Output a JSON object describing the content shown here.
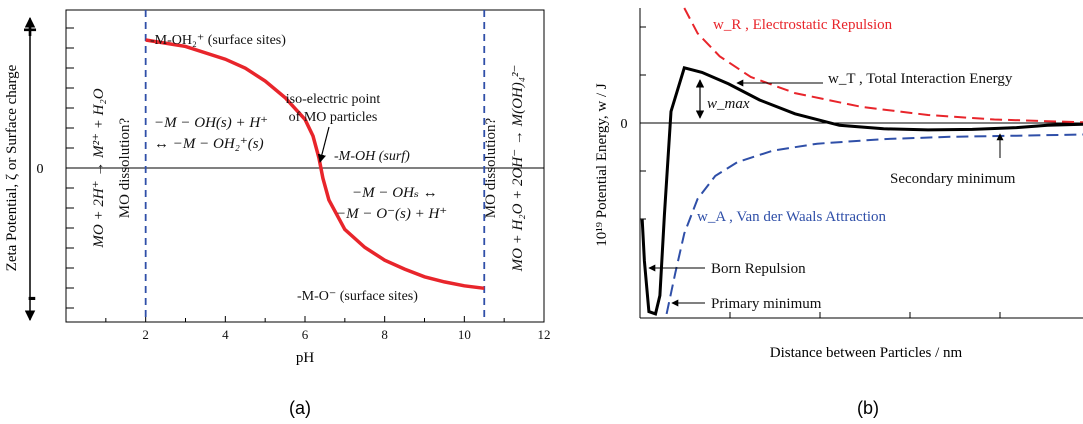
{
  "chart_data": [
    {
      "panel_label": "(a)",
      "type": "line",
      "xlabel": "pH",
      "ylabel": "Zeta Potential, ζ or Surface charge",
      "xlim": [
        0,
        12
      ],
      "x_ticks": [
        "2",
        "4",
        "6",
        "8",
        "10",
        "12"
      ],
      "y_sign_top": "+",
      "y_sign_bottom": "-",
      "y_zero_label": "0",
      "series": [
        {
          "color": "#e8252b",
          "x": [
            2.0,
            3.0,
            4.0,
            4.5,
            5.0,
            5.5,
            6.0,
            6.2,
            6.35,
            6.45,
            6.6,
            7.0,
            7.5,
            8.0,
            8.5,
            9.0,
            9.5,
            10.0,
            10.5
          ],
          "y": [
            1.0,
            0.95,
            0.85,
            0.78,
            0.68,
            0.55,
            0.38,
            0.25,
            0.08,
            -0.08,
            -0.25,
            -0.48,
            -0.62,
            -0.72,
            -0.79,
            -0.85,
            -0.89,
            -0.92,
            -0.94
          ]
        }
      ],
      "vlines": [
        {
          "x": 2.0,
          "color": "#2f4fa8",
          "style": "dashed"
        },
        {
          "x": 10.5,
          "color": "#2f4fa8",
          "style": "dashed"
        }
      ],
      "annotations": {
        "left_dissolution_eq": "MO + 2H⁺ → M²⁺ + H₂O",
        "left_dissolution_q": "MO dissolution?",
        "right_dissolution_q": "MO dissolution?",
        "right_dissolution_eq": "MO + H₂O + 2OH⁻ → M(OH)₄²⁻",
        "top_sites": "-M-OH₂⁺ (surface sites)",
        "bottom_sites": "-M-O⁻ (surface sites)",
        "iep_line1": "iso-electric point",
        "iep_line2": "of MO particles",
        "neutral_site": "-M-OH (surf)",
        "protonation_line1": "−M − OH(s) + H⁺",
        "protonation_line2": "↔ −M − OH₂⁺(s)",
        "deprotonation_line1": "−M − OHₛ ↔",
        "deprotonation_line2": "−M − O⁻(s) + H⁺"
      }
    },
    {
      "panel_label": "(b)",
      "type": "line",
      "xlabel": "Distance between Particles / nm",
      "ylabel": "10¹⁹ Potential Energy, w / J",
      "y_zero_label": "0",
      "series": [
        {
          "name": "w_R , Electrostatic Repulsion",
          "color": "#e8252b",
          "style": "dashed",
          "x": [
            1.0,
            1.3,
            1.8,
            2.5,
            3.5,
            5.0,
            6.5,
            8.0,
            10.0
          ],
          "y": [
            5.0,
            3.9,
            2.9,
            2.0,
            1.3,
            0.7,
            0.35,
            0.15,
            0.03
          ]
        },
        {
          "name": "w_T , Total Interaction Energy",
          "color": "#000000",
          "style": "solid",
          "x": [
            0.05,
            0.1,
            0.2,
            0.35,
            0.45,
            0.55,
            0.7,
            1.0,
            1.4,
            2.0,
            2.7,
            3.5,
            4.5,
            5.5,
            6.5,
            7.5,
            8.5,
            9.2,
            10.0
          ],
          "y": [
            -4.2,
            -6.0,
            -8.2,
            -8.3,
            -7.5,
            -4.0,
            0.5,
            2.4,
            2.2,
            1.7,
            1.0,
            0.4,
            -0.1,
            -0.25,
            -0.3,
            -0.28,
            -0.2,
            -0.1,
            -0.05
          ]
        },
        {
          "name": "w_A , Van der Waals Attraction",
          "color": "#2f4fa8",
          "style": "dashed",
          "x": [
            0.6,
            0.8,
            1.0,
            1.3,
            1.7,
            2.2,
            3.0,
            4.0,
            5.5,
            7.0,
            8.5,
            10.0
          ],
          "y": [
            -8.3,
            -6.5,
            -4.8,
            -3.3,
            -2.3,
            -1.7,
            -1.2,
            -0.9,
            -0.7,
            -0.6,
            -0.55,
            -0.5
          ]
        }
      ],
      "annotations": {
        "w_max": "w_max",
        "secondary_minimum": "Secondary minimum",
        "born_repulsion": "Born Repulsion",
        "primary_minimum": "Primary minimum"
      }
    }
  ]
}
